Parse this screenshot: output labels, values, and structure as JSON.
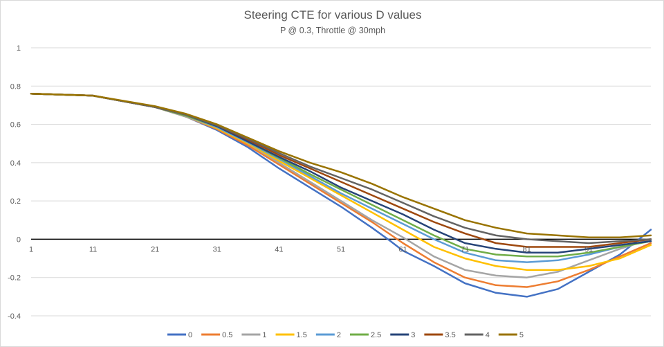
{
  "chart_data": {
    "type": "line",
    "title": "Steering CTE for various D values",
    "subtitle": "P @ 0.3, Throttle @ 30mph",
    "ylim": [
      -0.4,
      1
    ],
    "yticks": [
      "1",
      "0.8",
      "0.6",
      "0.4",
      "0.2",
      "0",
      "-0.2",
      "-0.4"
    ],
    "ytick_values": [
      1,
      0.8,
      0.6,
      0.4,
      0.2,
      0,
      -0.2,
      -0.4
    ],
    "xlim": [
      1,
      101
    ],
    "xticks": [
      "1",
      "11",
      "21",
      "31",
      "41",
      "51",
      "61",
      "71",
      "81",
      "91"
    ],
    "xtick_values": [
      1,
      11,
      21,
      31,
      41,
      51,
      61,
      71,
      81,
      91
    ],
    "grid": true,
    "legend_position": "bottom",
    "series": [
      {
        "name": "0",
        "color": "#4472C4",
        "points": [
          [
            1,
            0.76
          ],
          [
            11,
            0.75
          ],
          [
            21,
            0.69
          ],
          [
            26,
            0.64
          ],
          [
            31,
            0.57
          ],
          [
            36,
            0.48
          ],
          [
            41,
            0.37
          ],
          [
            46,
            0.27
          ],
          [
            51,
            0.17
          ],
          [
            56,
            0.06
          ],
          [
            59,
            -0.01
          ],
          [
            61,
            -0.06
          ],
          [
            66,
            -0.14
          ],
          [
            71,
            -0.23
          ],
          [
            76,
            -0.28
          ],
          [
            81,
            -0.3
          ],
          [
            86,
            -0.26
          ],
          [
            91,
            -0.17
          ],
          [
            96,
            -0.08
          ],
          [
            101,
            0.05
          ]
        ]
      },
      {
        "name": "0.5",
        "color": "#ED7D31",
        "points": [
          [
            1,
            0.76
          ],
          [
            11,
            0.75
          ],
          [
            21,
            0.69
          ],
          [
            26,
            0.64
          ],
          [
            31,
            0.575
          ],
          [
            36,
            0.49
          ],
          [
            41,
            0.39
          ],
          [
            46,
            0.29
          ],
          [
            51,
            0.19
          ],
          [
            56,
            0.09
          ],
          [
            61,
            -0.02
          ],
          [
            66,
            -0.12
          ],
          [
            71,
            -0.2
          ],
          [
            76,
            -0.24
          ],
          [
            81,
            -0.25
          ],
          [
            86,
            -0.22
          ],
          [
            91,
            -0.16
          ],
          [
            96,
            -0.09
          ],
          [
            101,
            -0.02
          ]
        ]
      },
      {
        "name": "1",
        "color": "#A5A5A5",
        "points": [
          [
            1,
            0.76
          ],
          [
            11,
            0.75
          ],
          [
            21,
            0.69
          ],
          [
            26,
            0.64
          ],
          [
            31,
            0.58
          ],
          [
            36,
            0.5
          ],
          [
            41,
            0.4
          ],
          [
            46,
            0.3
          ],
          [
            51,
            0.2
          ],
          [
            56,
            0.1
          ],
          [
            61,
            0.01
          ],
          [
            66,
            -0.09
          ],
          [
            71,
            -0.16
          ],
          [
            76,
            -0.19
          ],
          [
            81,
            -0.2
          ],
          [
            86,
            -0.17
          ],
          [
            91,
            -0.11
          ],
          [
            96,
            -0.05
          ],
          [
            101,
            0.0
          ]
        ]
      },
      {
        "name": "1.5",
        "color": "#FFC000",
        "points": [
          [
            1,
            0.76
          ],
          [
            11,
            0.75
          ],
          [
            21,
            0.69
          ],
          [
            26,
            0.645
          ],
          [
            31,
            0.58
          ],
          [
            36,
            0.5
          ],
          [
            41,
            0.41
          ],
          [
            46,
            0.32
          ],
          [
            51,
            0.23
          ],
          [
            56,
            0.14
          ],
          [
            61,
            0.05
          ],
          [
            66,
            -0.04
          ],
          [
            71,
            -0.1
          ],
          [
            76,
            -0.14
          ],
          [
            81,
            -0.16
          ],
          [
            86,
            -0.16
          ],
          [
            91,
            -0.14
          ],
          [
            96,
            -0.1
          ],
          [
            101,
            -0.03
          ]
        ]
      },
      {
        "name": "2",
        "color": "#5B9BD5",
        "points": [
          [
            1,
            0.76
          ],
          [
            11,
            0.75
          ],
          [
            21,
            0.69
          ],
          [
            26,
            0.645
          ],
          [
            31,
            0.585
          ],
          [
            36,
            0.505
          ],
          [
            41,
            0.42
          ],
          [
            46,
            0.33
          ],
          [
            51,
            0.24
          ],
          [
            56,
            0.16
          ],
          [
            61,
            0.08
          ],
          [
            66,
            0.0
          ],
          [
            71,
            -0.07
          ],
          [
            76,
            -0.11
          ],
          [
            81,
            -0.12
          ],
          [
            86,
            -0.11
          ],
          [
            91,
            -0.08
          ],
          [
            96,
            -0.04
          ],
          [
            101,
            -0.01
          ]
        ]
      },
      {
        "name": "2.5",
        "color": "#70AD47",
        "points": [
          [
            1,
            0.76
          ],
          [
            11,
            0.75
          ],
          [
            21,
            0.69
          ],
          [
            26,
            0.645
          ],
          [
            31,
            0.59
          ],
          [
            36,
            0.51
          ],
          [
            41,
            0.425
          ],
          [
            46,
            0.34
          ],
          [
            51,
            0.26
          ],
          [
            56,
            0.18
          ],
          [
            61,
            0.1
          ],
          [
            66,
            0.02
          ],
          [
            71,
            -0.05
          ],
          [
            76,
            -0.08
          ],
          [
            81,
            -0.09
          ],
          [
            86,
            -0.09
          ],
          [
            91,
            -0.07
          ],
          [
            96,
            -0.04
          ],
          [
            101,
            -0.01
          ]
        ]
      },
      {
        "name": "3",
        "color": "#264478",
        "points": [
          [
            1,
            0.76
          ],
          [
            11,
            0.75
          ],
          [
            21,
            0.69
          ],
          [
            26,
            0.65
          ],
          [
            31,
            0.59
          ],
          [
            36,
            0.51
          ],
          [
            41,
            0.43
          ],
          [
            46,
            0.355
          ],
          [
            51,
            0.27
          ],
          [
            56,
            0.2
          ],
          [
            61,
            0.13
          ],
          [
            66,
            0.05
          ],
          [
            71,
            -0.02
          ],
          [
            76,
            -0.05
          ],
          [
            81,
            -0.07
          ],
          [
            86,
            -0.07
          ],
          [
            91,
            -0.05
          ],
          [
            96,
            -0.03
          ],
          [
            101,
            -0.01
          ]
        ]
      },
      {
        "name": "3.5",
        "color": "#9E480E",
        "points": [
          [
            1,
            0.76
          ],
          [
            11,
            0.75
          ],
          [
            21,
            0.69
          ],
          [
            26,
            0.65
          ],
          [
            31,
            0.595
          ],
          [
            36,
            0.52
          ],
          [
            41,
            0.44
          ],
          [
            46,
            0.37
          ],
          [
            51,
            0.3
          ],
          [
            56,
            0.23
          ],
          [
            61,
            0.16
          ],
          [
            66,
            0.09
          ],
          [
            71,
            0.03
          ],
          [
            76,
            -0.02
          ],
          [
            81,
            -0.04
          ],
          [
            86,
            -0.04
          ],
          [
            91,
            -0.04
          ],
          [
            96,
            -0.02
          ],
          [
            101,
            0.0
          ]
        ]
      },
      {
        "name": "4",
        "color": "#636363",
        "points": [
          [
            1,
            0.76
          ],
          [
            11,
            0.75
          ],
          [
            21,
            0.69
          ],
          [
            26,
            0.65
          ],
          [
            31,
            0.595
          ],
          [
            36,
            0.525
          ],
          [
            41,
            0.45
          ],
          [
            46,
            0.38
          ],
          [
            51,
            0.32
          ],
          [
            56,
            0.26
          ],
          [
            61,
            0.19
          ],
          [
            66,
            0.12
          ],
          [
            71,
            0.06
          ],
          [
            76,
            0.02
          ],
          [
            81,
            0.0
          ],
          [
            86,
            -0.01
          ],
          [
            91,
            -0.02
          ],
          [
            96,
            -0.01
          ],
          [
            101,
            0.0
          ]
        ]
      },
      {
        "name": "5",
        "color": "#997300",
        "points": [
          [
            1,
            0.76
          ],
          [
            11,
            0.75
          ],
          [
            21,
            0.695
          ],
          [
            26,
            0.655
          ],
          [
            31,
            0.6
          ],
          [
            36,
            0.53
          ],
          [
            41,
            0.46
          ],
          [
            46,
            0.4
          ],
          [
            51,
            0.35
          ],
          [
            56,
            0.29
          ],
          [
            61,
            0.22
          ],
          [
            66,
            0.16
          ],
          [
            71,
            0.1
          ],
          [
            76,
            0.06
          ],
          [
            81,
            0.03
          ],
          [
            86,
            0.02
          ],
          [
            91,
            0.01
          ],
          [
            96,
            0.01
          ],
          [
            101,
            0.02
          ]
        ]
      }
    ]
  }
}
